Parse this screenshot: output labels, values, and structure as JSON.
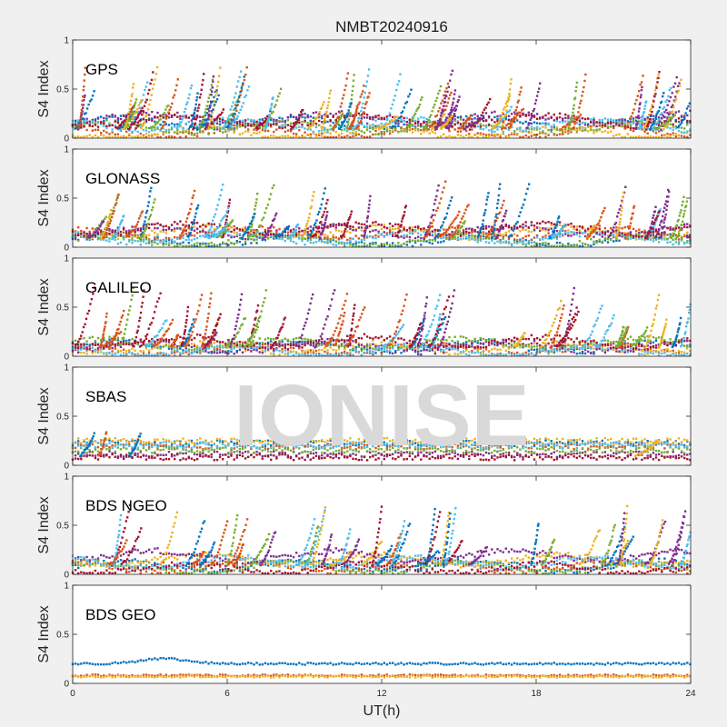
{
  "figure": {
    "title": "NMBT20240916",
    "watermark": "IONISE"
  },
  "colors": [
    "#0072BD",
    "#D95319",
    "#EDB120",
    "#7E2F8E",
    "#77AC30",
    "#4DBEEE",
    "#A2142F"
  ],
  "chart_data": {
    "type": "scatter",
    "title": "NMBT20240916",
    "xlabel": "UT(h)",
    "xlim": [
      0,
      24
    ],
    "xticks": [
      "0",
      "6",
      "12",
      "18",
      "24"
    ],
    "ylabel": "S4 Index",
    "ylim": [
      0,
      1
    ],
    "yticks": [
      "0",
      "0.5",
      "1"
    ],
    "grid": false,
    "panels": [
      {
        "name": "GPS",
        "baseline": [
          0.05,
          0.2
        ],
        "spikes": 80,
        "spike_max": 0.75,
        "series_count": 7
      },
      {
        "name": "GLONASS",
        "baseline": [
          0.05,
          0.2
        ],
        "spikes": 55,
        "spike_max": 0.7,
        "series_count": 7
      },
      {
        "name": "GALILEO",
        "baseline": [
          0.05,
          0.15
        ],
        "spikes": 55,
        "spike_max": 0.72,
        "series_count": 7
      },
      {
        "name": "SBAS",
        "baseline": [
          0.08,
          0.25
        ],
        "spikes": 4,
        "spike_max": 0.35,
        "series_count": 7
      },
      {
        "name": "BDS NGEO",
        "baseline": [
          0.05,
          0.2
        ],
        "spikes": 50,
        "spike_max": 0.72,
        "series_count": 7
      },
      {
        "name": "BDS GEO",
        "baseline": [
          0.07,
          0.2
        ],
        "spikes": 0,
        "spike_max": 0.26,
        "series_count": 3
      }
    ]
  }
}
